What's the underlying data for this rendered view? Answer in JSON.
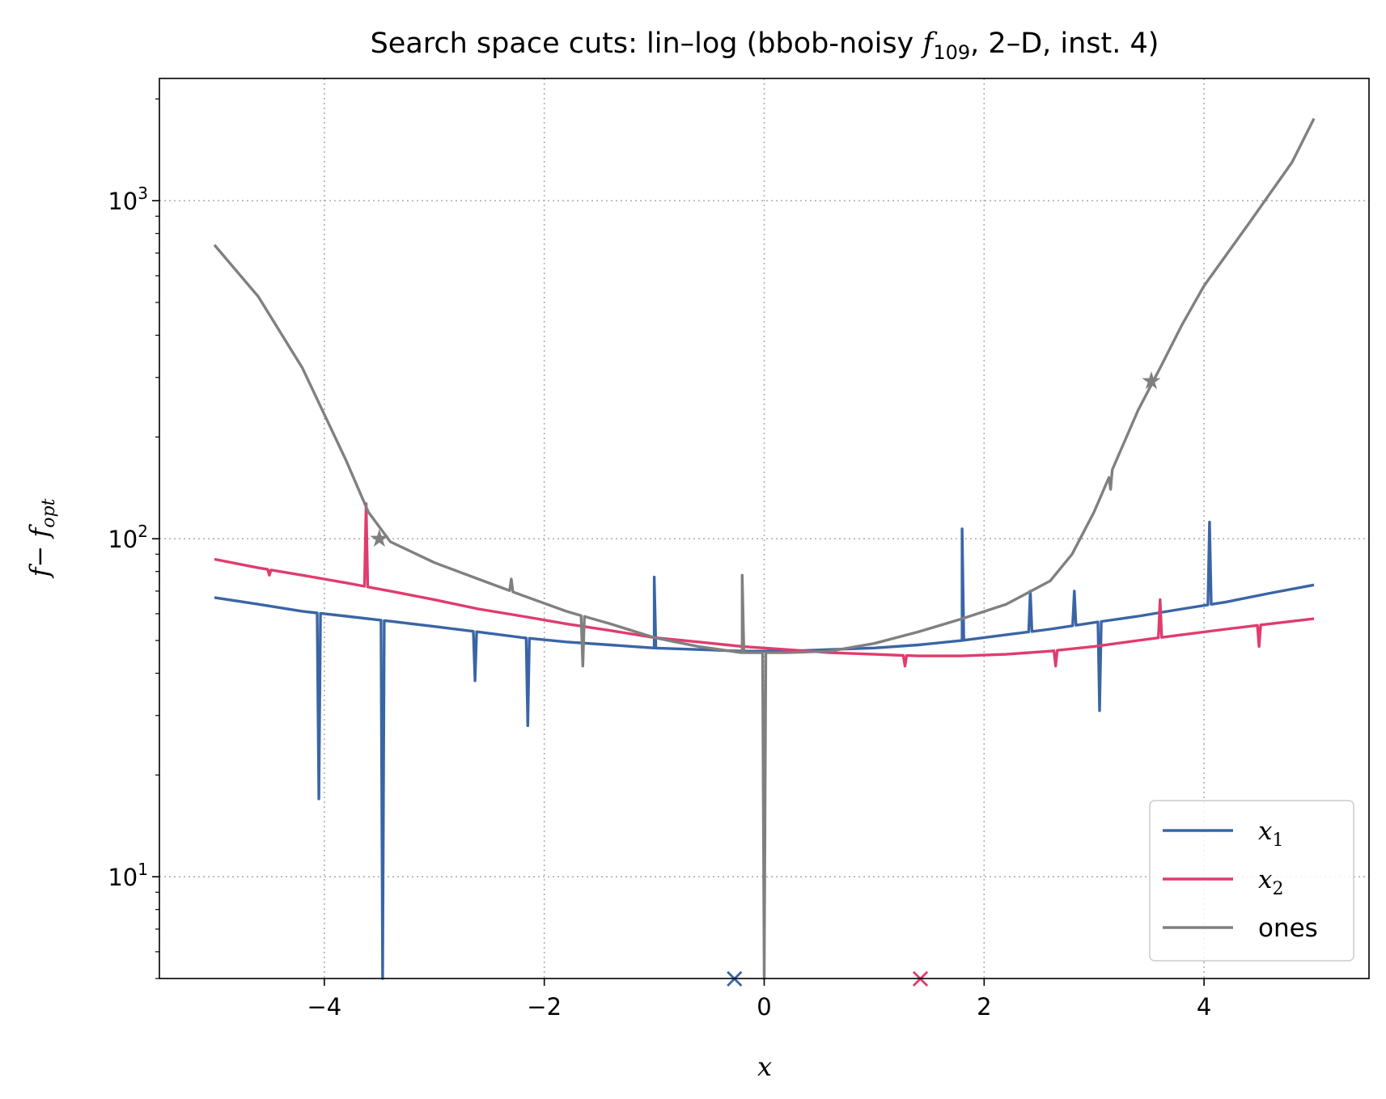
{
  "chart_data": {
    "type": "line",
    "title_parts": [
      "Search space cuts: lin–log (bbob-noisy ",
      "f",
      "109",
      ", 2–D, inst. 4)"
    ],
    "xlabel": "x",
    "ylabel": [
      "f",
      "− ",
      "f",
      "opt"
    ],
    "x_range": [
      -5.5,
      5.5
    ],
    "y_range": [
      5,
      2300
    ],
    "y_scale": "log",
    "x_ticks": [
      {
        "v": -4,
        "label": "−4"
      },
      {
        "v": -2,
        "label": "−2"
      },
      {
        "v": 0,
        "label": "0"
      },
      {
        "v": 2,
        "label": "2"
      },
      {
        "v": 4,
        "label": "4"
      }
    ],
    "y_ticks": [
      {
        "v": 10,
        "base": "10",
        "exp": "1"
      },
      {
        "v": 100,
        "base": "10",
        "exp": "2"
      },
      {
        "v": 1000,
        "base": "10",
        "exp": "3"
      }
    ],
    "grid": true,
    "legend_position": "lower-right",
    "series": [
      {
        "name": "x",
        "name_sub": "1",
        "color": "#3a65a5",
        "points": [
          [
            -5.0,
            67
          ],
          [
            -4.6,
            64
          ],
          [
            -4.2,
            61
          ],
          [
            -3.8,
            59
          ],
          [
            -3.4,
            57
          ],
          [
            -3.0,
            55
          ],
          [
            -2.6,
            53
          ],
          [
            -2.2,
            51
          ],
          [
            -1.8,
            49.5
          ],
          [
            -1.4,
            48.5
          ],
          [
            -1.0,
            47.5
          ],
          [
            -0.6,
            47
          ],
          [
            -0.2,
            46.5
          ],
          [
            0.2,
            46.5
          ],
          [
            0.6,
            47
          ],
          [
            1.0,
            47.5
          ],
          [
            1.4,
            48.5
          ],
          [
            1.8,
            50
          ],
          [
            2.2,
            52
          ],
          [
            2.6,
            54
          ],
          [
            3.0,
            56.5
          ],
          [
            3.4,
            59
          ],
          [
            3.8,
            62
          ],
          [
            4.2,
            65
          ],
          [
            4.6,
            69
          ],
          [
            5.0,
            73
          ]
        ],
        "spikes": [
          [
            -4.05,
            17
          ],
          [
            -3.47,
            5
          ],
          [
            -2.63,
            38
          ],
          [
            -2.15,
            28
          ],
          [
            -1.0,
            77
          ],
          [
            1.8,
            107
          ],
          [
            2.42,
            70
          ],
          [
            2.82,
            70
          ],
          [
            3.05,
            31
          ],
          [
            4.05,
            112
          ]
        ]
      },
      {
        "name": "x",
        "name_sub": "2",
        "color": "#e03c6e",
        "points": [
          [
            -5.0,
            87
          ],
          [
            -4.6,
            82
          ],
          [
            -4.2,
            78
          ],
          [
            -3.8,
            74
          ],
          [
            -3.4,
            70
          ],
          [
            -3.0,
            66
          ],
          [
            -2.6,
            62
          ],
          [
            -2.2,
            59
          ],
          [
            -1.8,
            56
          ],
          [
            -1.4,
            53.5
          ],
          [
            -1.0,
            51
          ],
          [
            -0.6,
            49.5
          ],
          [
            -0.2,
            48
          ],
          [
            0.2,
            47
          ],
          [
            0.6,
            46
          ],
          [
            1.0,
            45.5
          ],
          [
            1.4,
            45
          ],
          [
            1.8,
            45
          ],
          [
            2.2,
            45.5
          ],
          [
            2.6,
            46.5
          ],
          [
            3.0,
            48
          ],
          [
            3.4,
            50
          ],
          [
            3.8,
            52
          ],
          [
            4.2,
            54
          ],
          [
            4.6,
            56
          ],
          [
            5.0,
            58
          ]
        ],
        "spikes": [
          [
            -3.62,
            127
          ],
          [
            -4.5,
            78
          ],
          [
            1.28,
            42
          ],
          [
            2.65,
            42
          ],
          [
            3.6,
            66
          ],
          [
            4.5,
            48
          ]
        ]
      },
      {
        "name": "ones",
        "name_sub": "",
        "color": "#808080",
        "points": [
          [
            -5.0,
            740
          ],
          [
            -4.6,
            520
          ],
          [
            -4.2,
            320
          ],
          [
            -3.8,
            170
          ],
          [
            -3.6,
            120
          ],
          [
            -3.4,
            98
          ],
          [
            -3.0,
            85
          ],
          [
            -2.6,
            76
          ],
          [
            -2.2,
            68
          ],
          [
            -1.8,
            61
          ],
          [
            -1.4,
            56
          ],
          [
            -1.0,
            51
          ],
          [
            -0.6,
            48
          ],
          [
            -0.2,
            46
          ],
          [
            0.2,
            46
          ],
          [
            0.6,
            46.5
          ],
          [
            1.0,
            49
          ],
          [
            1.4,
            53
          ],
          [
            1.8,
            58
          ],
          [
            2.2,
            64
          ],
          [
            2.6,
            75
          ],
          [
            2.8,
            90
          ],
          [
            3.0,
            120
          ],
          [
            3.2,
            170
          ],
          [
            3.4,
            240
          ],
          [
            3.6,
            320
          ],
          [
            3.8,
            430
          ],
          [
            4.0,
            560
          ],
          [
            4.4,
            850
          ],
          [
            4.8,
            1300
          ],
          [
            5.0,
            1750
          ]
        ],
        "spikes": [
          [
            0.0,
            5
          ],
          [
            -0.2,
            78
          ],
          [
            -1.65,
            42
          ],
          [
            -2.3,
            76
          ],
          [
            3.15,
            140
          ]
        ]
      }
    ],
    "markers": [
      {
        "x": -0.27,
        "y": 5,
        "symbol": "×",
        "color": "#3a65a5"
      },
      {
        "x": 1.42,
        "y": 5,
        "symbol": "×",
        "color": "#e03c6e"
      }
    ],
    "star_markers": [
      {
        "x": -3.5,
        "y": 100,
        "color": "#808080"
      },
      {
        "x": 3.52,
        "y": 293,
        "color": "#808080"
      }
    ]
  }
}
